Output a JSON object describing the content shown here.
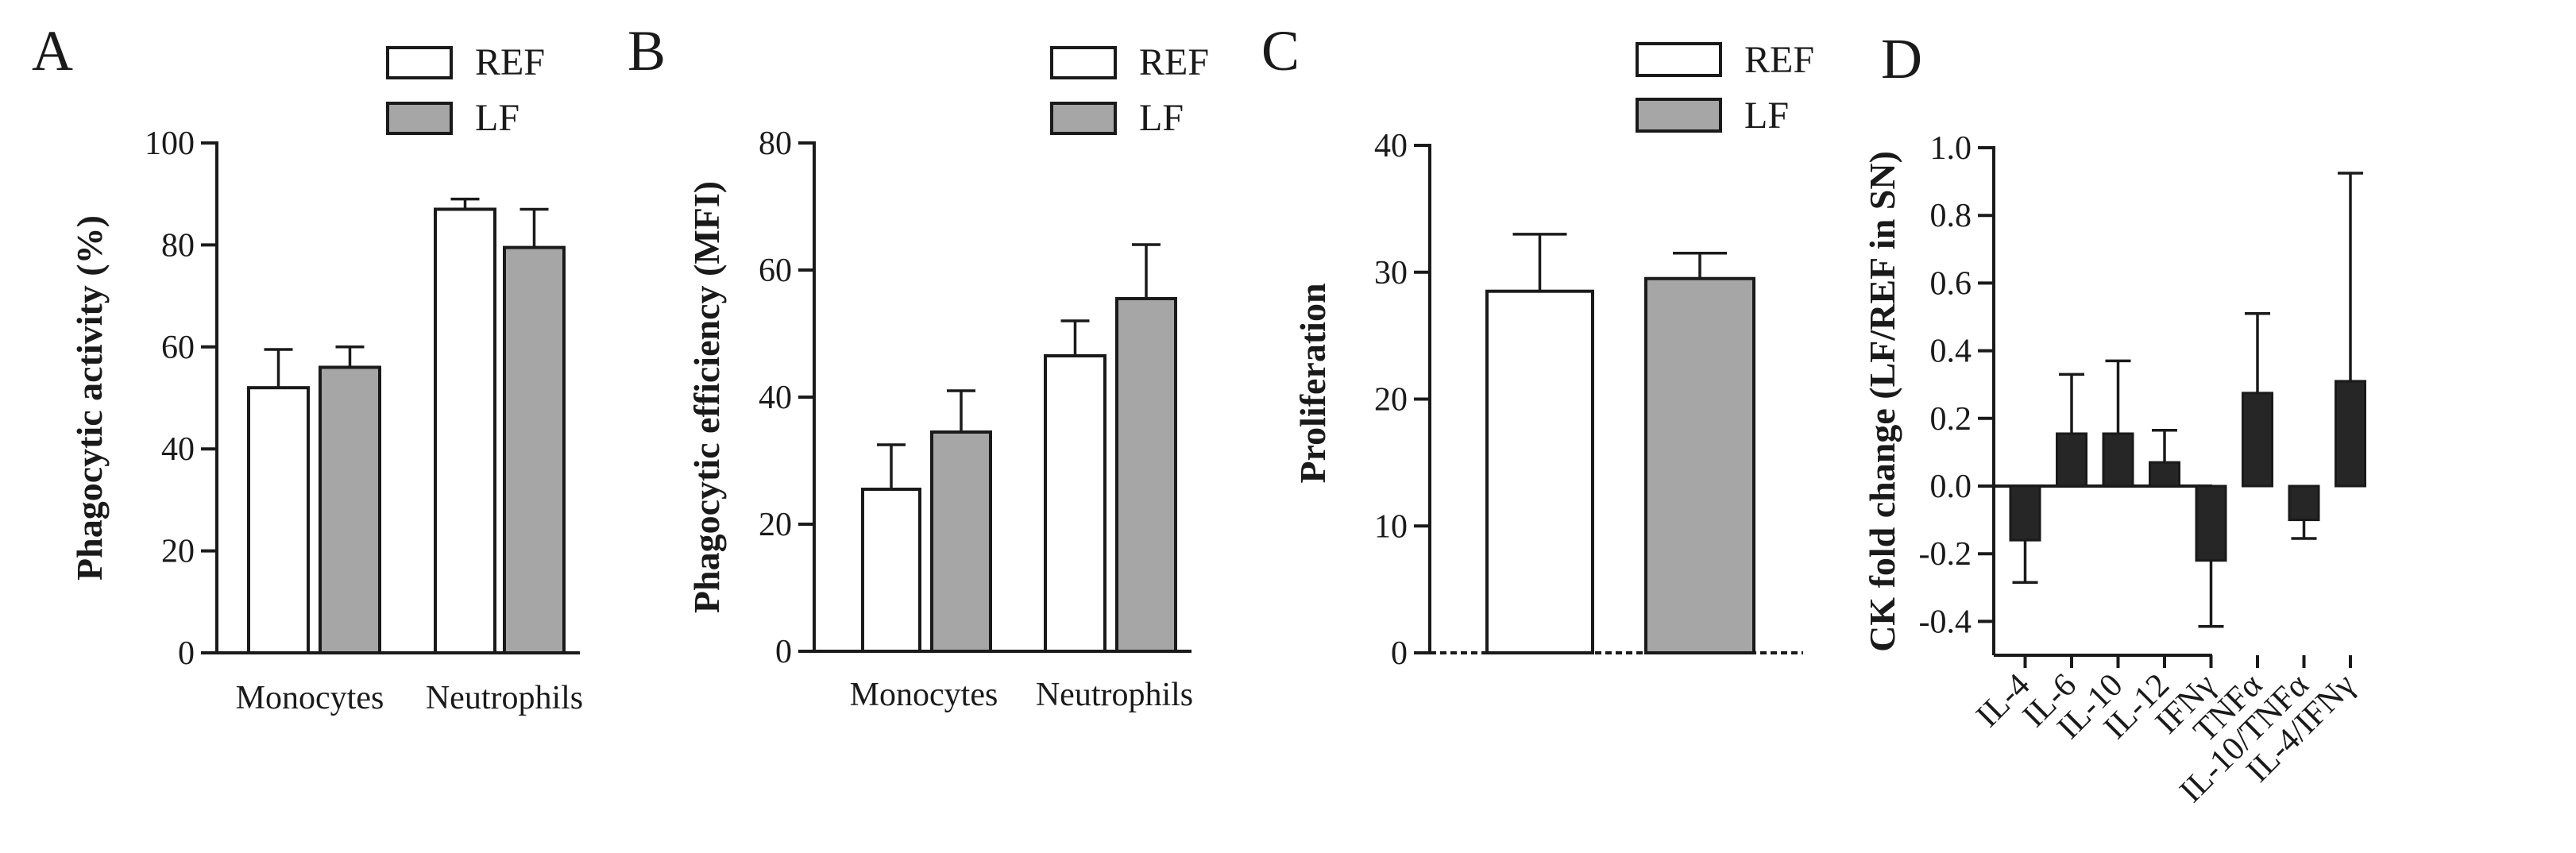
{
  "figure": {
    "legend": {
      "items": [
        {
          "label": "REF",
          "color": "#ffffff"
        },
        {
          "label": "LF",
          "color": "#a6a6a6"
        }
      ]
    }
  },
  "chart_data": [
    {
      "panel": "A",
      "type": "bar",
      "ylabel": "Phagocytic activity (%)",
      "ylim": [
        0,
        100
      ],
      "yticks": [
        0,
        20,
        40,
        60,
        80,
        100
      ],
      "categories": [
        "Monocytes",
        "Neutrophils"
      ],
      "series": [
        {
          "name": "REF",
          "color": "#ffffff",
          "values": [
            52,
            87
          ],
          "errors": [
            7.5,
            2
          ]
        },
        {
          "name": "LF",
          "color": "#a6a6a6",
          "values": [
            56,
            79.5
          ],
          "errors": [
            4,
            7.5
          ]
        }
      ]
    },
    {
      "panel": "B",
      "type": "bar",
      "ylabel": "Phagocytic efficiency (MFI)",
      "ylim": [
        0,
        80
      ],
      "yticks": [
        0,
        20,
        40,
        60,
        80
      ],
      "categories": [
        "Monocytes",
        "Neutrophils"
      ],
      "series": [
        {
          "name": "REF",
          "color": "#ffffff",
          "values": [
            25.5,
            46.5
          ],
          "errors": [
            7,
            5.5
          ]
        },
        {
          "name": "LF",
          "color": "#a6a6a6",
          "values": [
            34.5,
            55.5
          ],
          "errors": [
            6.5,
            8.5
          ]
        }
      ]
    },
    {
      "panel": "C",
      "type": "bar",
      "ylabel": "Proliferation",
      "ylim": [
        0,
        40
      ],
      "yticks": [
        0,
        10,
        20,
        30,
        40
      ],
      "categories": [
        "REF",
        "LF"
      ],
      "series": [
        {
          "name": "Proliferation",
          "values": [
            28.5,
            29.5
          ],
          "errors": [
            4.5,
            2
          ],
          "colors": [
            "#ffffff",
            "#a6a6a6"
          ]
        }
      ]
    },
    {
      "panel": "D",
      "type": "bar",
      "ylabel": "CK fold change (LF/REF in SN)",
      "ylim": [
        -0.5,
        1.0
      ],
      "yticks": [
        "-0.4",
        "-0.2",
        "0.0",
        "0.2",
        "0.4",
        "0.6",
        "0.8",
        "1.0"
      ],
      "categories": [
        "IL-4",
        "IL-6",
        "IL-10",
        "IL-12",
        "IFNγ",
        "TNFα",
        "IL-10/TNFα",
        "IL-4/IFNγ"
      ],
      "series": [
        {
          "name": "LF/REF",
          "color": "#262626",
          "values": [
            -0.16,
            0.155,
            0.155,
            0.07,
            -0.22,
            0.275,
            -0.1,
            0.31
          ],
          "errors": [
            0.125,
            0.175,
            0.215,
            0.095,
            0.195,
            0.235,
            0.055,
            0.615
          ]
        }
      ]
    }
  ]
}
